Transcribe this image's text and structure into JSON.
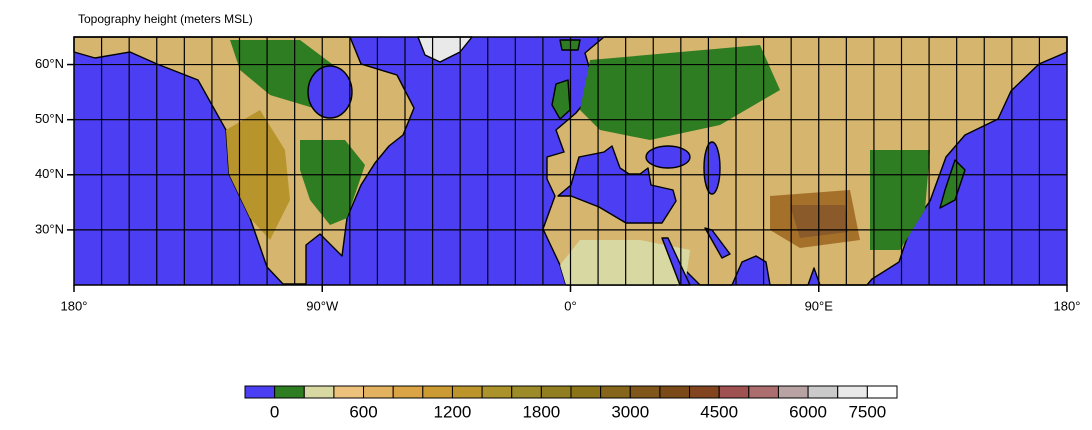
{
  "title": "Topography height   (meters MSL)",
  "map": {
    "xlim": [
      -180,
      180
    ],
    "ylim": [
      20,
      65
    ],
    "xticks": [
      {
        "value": -180,
        "label": "180°"
      },
      {
        "value": -90,
        "label": "90°W"
      },
      {
        "value": 0,
        "label": "0°"
      },
      {
        "value": 90,
        "label": "90°E"
      },
      {
        "value": 180,
        "label": "180°"
      }
    ],
    "yticks": [
      {
        "value": 30,
        "label": "30°N"
      },
      {
        "value": 40,
        "label": "40°N"
      },
      {
        "value": 50,
        "label": "50°N"
      },
      {
        "value": 60,
        "label": "60°N"
      }
    ],
    "grid_step": 10,
    "ocean_color": "#4c3ef2"
  },
  "colorbar": {
    "colors": [
      "#4c3ef2",
      "#2e7d22",
      "#d8d9a2",
      "#ecc17c",
      "#e3b261",
      "#d9a346",
      "#cc9a33",
      "#bb952c",
      "#ab922b",
      "#9d8a28",
      "#917e20",
      "#8b7319",
      "#86661a",
      "#80571a",
      "#7a4a18",
      "#83451f",
      "#a05252",
      "#ab6d6d",
      "#b9a2a2",
      "#cacaca",
      "#e9e9e9",
      "#ffffff"
    ],
    "labels": [
      0,
      600,
      1200,
      1800,
      3000,
      4500,
      6000,
      7500
    ]
  }
}
